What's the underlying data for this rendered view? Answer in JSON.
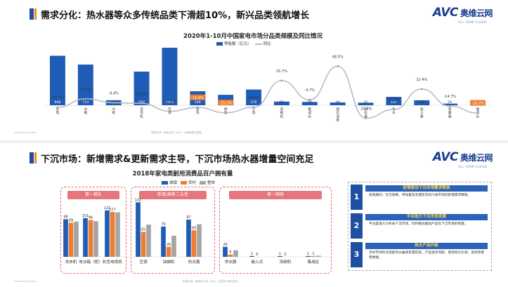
{
  "top": {
    "title": "需求分化：热水器等众多传统品类下滑超10%，新兴品类领航增长",
    "logo_main": "AVC",
    "logo_cn": "奥维云网",
    "logo_sub": "ALL VIEW CLOUD",
    "footer": "数据来源：奥维云网（AVC）全渠道推总数据",
    "footer_url": "www.avc-mr.com",
    "chart_data": {
      "type": "bar",
      "title": "2020年1-10月中国家电市场分品类规模及同比情况",
      "categories": [
        "彩电",
        "冰箱",
        "冷柜",
        "洗衣机",
        "空调",
        "电热",
        "燃热",
        "小电",
        "洗碗机",
        "集成灶",
        "烟灶",
        "净化器",
        "净水",
        "吸尘器",
        "电暖器",
        "集成灶"
      ],
      "category_labels": [
        "彩\n电",
        "冰\n箱",
        "冷\n柜",
        "洗\n衣\n机",
        "空\n调",
        "电\n热",
        "燃\n热",
        "小\n电",
        "洗\n碗\n机",
        "集\n成\n灶",
        "烟\n灶\n消\n费",
        "净\n化\n器",
        "净\n水",
        "吸\n尘\n器",
        "电\n暖\n器",
        "集\n成\n灶"
      ],
      "series": [
        {
          "name": "零售额（亿元）",
          "values": [
            868,
            714,
            88,
            590,
            1009,
            246,
            183,
            276,
            65,
            58,
            49,
            45,
            147,
            88,
            29,
            9
          ]
        },
        {
          "name": "同比",
          "values": [
            -16.7,
            -3.1,
            -9.4,
            -10.5,
            -22.8,
            -16.9,
            -25.2,
            -16.6,
            25.7,
            -4.7,
            48.5,
            -33.8,
            -20.1,
            12.4,
            -14.7,
            -25.7
          ]
        }
      ],
      "value_labels": [
        "868",
        "714",
        "88",
        "590",
        "1009",
        "246",
        "183",
        "276",
        "65",
        "58",
        "49",
        "45",
        "147",
        "88",
        "29",
        "9"
      ],
      "yoy_labels": [
        "-16.7%",
        "-3.1%",
        "-9.4%",
        "-10.5%",
        "-22.8%",
        "-16.9%",
        "-25.2%",
        "-16.6%",
        "25.7%",
        "-4.7%",
        "48.5%",
        "-33.8%",
        "-20.1%",
        "12.4%",
        "-14.7%",
        "-25.7%"
      ],
      "highlight_color": "#ed7d31",
      "bar_color": "#1f5cb5",
      "line_color": "#b8bcc4"
    }
  },
  "bottom": {
    "title": "下沉市场：新增需求&更新需求主导，下沉市场热水器增量空间充足",
    "logo_main": "AVC",
    "logo_cn": "奥维云网",
    "logo_sub": "ALL VIEW CLOUD",
    "footer": "数据来源：国家统计局（AVC）全国农村家电报告",
    "footer_url": "www.avc-mr.com",
    "groups": [
      "第一梯队",
      "新增/换新二元性",
      "第一剩隙"
    ],
    "chart_data": {
      "type": "bar",
      "title": "2018年家电类耐用消费品百户拥有量",
      "categories": [
        "洗衣机",
        "电冰箱（柜）",
        "彩色电视机",
        "空调",
        "油烟机",
        "热水器",
        "净水器",
        "嵌入式",
        "洗碗机",
        "集成灶"
      ],
      "series": [
        {
          "name": "城镇",
          "values": [
            98,
            101,
            121,
            142,
            79,
            97,
            26,
            1,
            1,
            1
          ]
        },
        {
          "name": "农村",
          "values": [
            89,
            96,
            117,
            65,
            26,
            69,
            6,
            0,
            0,
            1
          ]
        },
        {
          "name": "整体",
          "values": [
            92,
            93,
            116,
            84,
            55,
            85,
            17,
            0,
            0,
            3
          ]
        }
      ],
      "labels": {
        "城镇": [
          "98",
          "101",
          "121",
          "142",
          "79",
          "97",
          "26",
          "1",
          "1",
          "1"
        ],
        "农村": [
          "89",
          "96",
          "117",
          "65",
          "26",
          "69",
          "6",
          "0",
          "0",
          "1"
        ]
      },
      "colors": [
        "#1f5cb5",
        "#ed7d31",
        "#a5a5a5"
      ]
    },
    "side": [
      {
        "num": "1",
        "head": "疫情驱动下沉市场需求释放",
        "body": "疫情期间，社交隔离、带动着及亲朋友的四六线市场的新增需求释放。"
      },
      {
        "num": "2",
        "head": "平台助力下沉市场发展",
        "body": "平台渠道大力布局下沉市场，同时模式推动产品在下沉市场的销量。"
      },
      {
        "num": "3",
        "head": "热水产品升级",
        "body": "农村市场的太阳能热水器保有量较高，产品逐步同质，电热性价比高、安装和使用便捷。"
      }
    ]
  }
}
